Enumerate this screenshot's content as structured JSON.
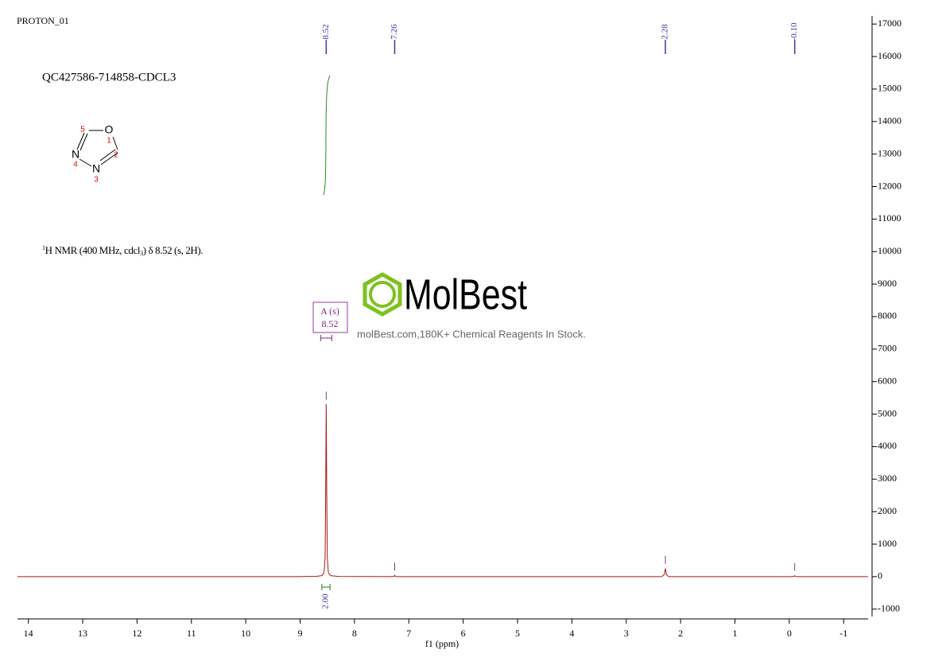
{
  "chart_data": {
    "type": "nmr",
    "title": "PROTON_01",
    "sample": "QC427586-714858-CDCL3",
    "description": [
      "1",
      "H NMR (400 MHz, cdcl",
      "3",
      ") δ 8.52 (s, 2H)."
    ],
    "molecule": {
      "atoms": [
        "O",
        "N",
        "N"
      ],
      "numbers": [
        "5",
        "1",
        "2",
        "3",
        "4"
      ]
    },
    "watermark": {
      "brand": "MolBest",
      "tagline": "molBest.com,180K+ Chemical Reagents In Stock."
    },
    "x_label": "f1 (ppm)",
    "xlim": [
      14.2,
      -1.45
    ],
    "xticks": [
      14,
      13,
      12,
      11,
      10,
      9,
      8,
      7,
      6,
      5,
      4,
      3,
      2,
      1,
      0,
      -1
    ],
    "ylim": [
      -1300,
      17250
    ],
    "yticks": [
      -1000,
      0,
      1000,
      2000,
      3000,
      4000,
      5000,
      6000,
      7000,
      8000,
      9000,
      10000,
      11000,
      12000,
      13000,
      14000,
      15000,
      16000,
      17000
    ],
    "series": [
      {
        "color": "#a01818",
        "x": [
          14.2,
          9.0,
          8.7,
          8.6,
          8.56,
          8.54,
          8.53,
          8.52,
          8.51,
          8.5,
          8.48,
          8.44,
          8.3,
          7.3,
          7.27,
          7.26,
          7.25,
          7.22,
          2.35,
          2.3,
          2.28,
          2.26,
          2.22,
          -0.05,
          -0.09,
          -0.1,
          -0.11,
          -0.15,
          -1.45
        ],
        "values": [
          0,
          0,
          10,
          30,
          120,
          600,
          2500,
          5300,
          2500,
          600,
          120,
          30,
          5,
          0,
          10,
          40,
          10,
          0,
          0,
          60,
          250,
          60,
          0,
          0,
          10,
          30,
          10,
          0,
          0
        ]
      }
    ],
    "peaks": [
      8.52,
      7.26,
      2.28,
      {
        "value": -0.1,
        "label": "-0.10"
      }
    ],
    "multiplet": {
      "label": "A (s)",
      "shift": 8.52
    },
    "integral": {
      "range": [
        8.6,
        8.45
      ],
      "value": {
        "value": 2,
        "label": "2.00"
      }
    }
  }
}
